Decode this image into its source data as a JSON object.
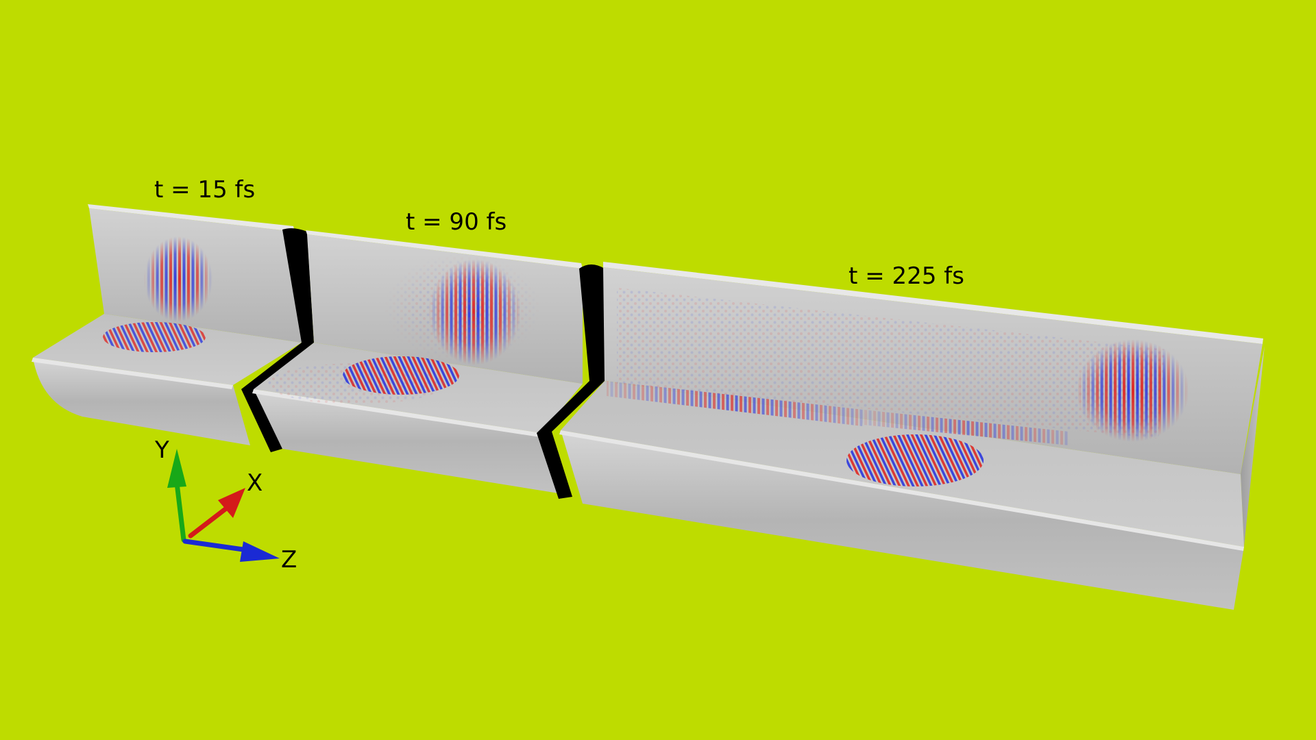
{
  "labels": {
    "segment_1": "t = 15 fs",
    "segment_2": "t = 90 fs",
    "segment_3": "t = 225 fs"
  },
  "axes": {
    "y": "Y",
    "x": "X",
    "z": "Z"
  },
  "colors": {
    "background": "#BEDC00",
    "surface": "#C4C4C4",
    "positive_field": "#E0201A",
    "negative_field": "#2230E0",
    "separator": "#000000",
    "axis_x": "#D41A1A",
    "axis_y": "#18A818",
    "axis_z": "#1A2AD4"
  }
}
